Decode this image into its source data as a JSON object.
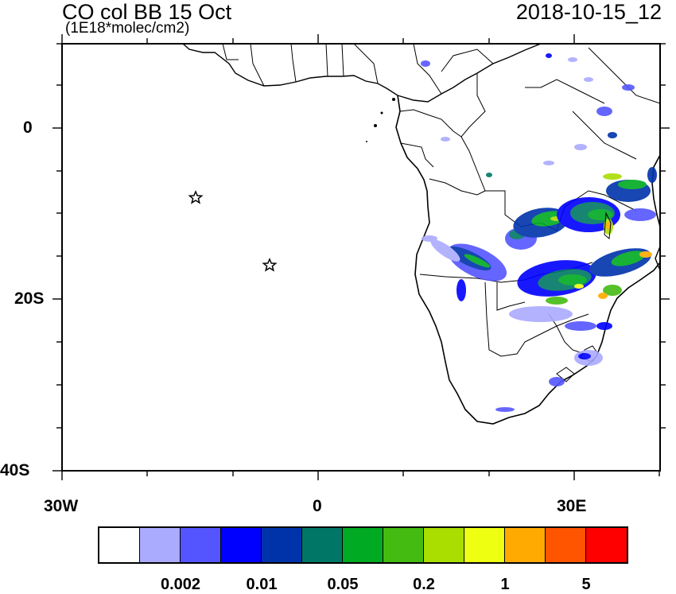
{
  "header": {
    "title": "CO col BB 15 Oct",
    "units": "(1E18*molec/cm2)",
    "datetime": "2018-10-15_12"
  },
  "map": {
    "region": "Southern Africa and South Atlantic",
    "lon_range": [
      -30,
      40
    ],
    "lat_range": [
      -40,
      10
    ],
    "y_ticks": [
      "0",
      "20S",
      "40S"
    ],
    "x_ticks": [
      "30W",
      "0",
      "30E"
    ],
    "markers": [
      {
        "symbol": "star",
        "lon": -14.4,
        "lat": -7.9
      },
      {
        "symbol": "star",
        "lon": -5.7,
        "lat": -15.9
      }
    ]
  },
  "colorbar": {
    "colors": [
      "#ffffff",
      "#aaaaff",
      "#5555ff",
      "#0000ff",
      "#0033aa",
      "#007766",
      "#00aa22",
      "#44bb11",
      "#aadd00",
      "#eeff11",
      "#ffaa00",
      "#ff5500",
      "#ff0000"
    ],
    "labels": [
      "0.002",
      "0.01",
      "0.05",
      "0.2",
      "1",
      "5"
    ]
  }
}
